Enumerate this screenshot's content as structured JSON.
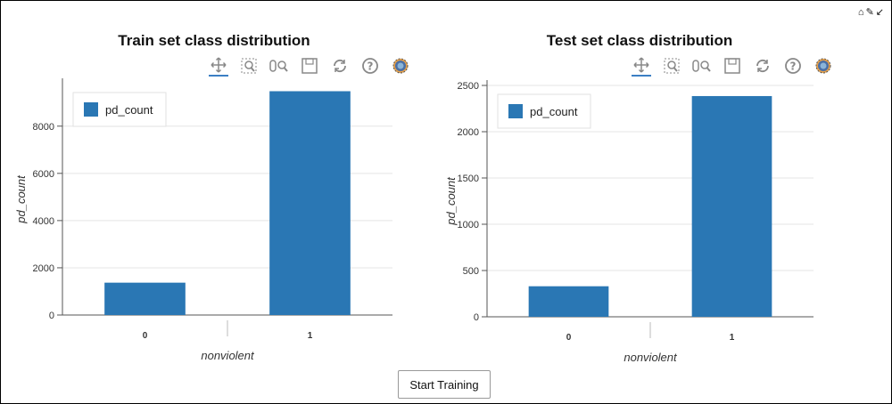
{
  "button": {
    "start_training": "Start Training"
  },
  "colors": {
    "bar": "#2a77b4",
    "axis": "#555555",
    "grid": "#e5e5e5"
  },
  "toolbar_icons": [
    "pan-icon",
    "box-zoom-icon",
    "wheel-zoom-icon",
    "save-icon",
    "reset-icon",
    "help-icon",
    "bokeh-logo-icon"
  ],
  "chart_data": [
    {
      "type": "bar",
      "title": "Train set class distribution",
      "categories": [
        "0",
        "1"
      ],
      "series": [
        {
          "name": "pd_count",
          "values": [
            1370,
            9480
          ]
        }
      ],
      "xlabel": "nonviolent",
      "ylabel": "pd_count",
      "yticks": [
        0,
        2000,
        4000,
        6000,
        8000
      ],
      "ylim": [
        0,
        9800
      ],
      "grid": true,
      "legend": "top-left"
    },
    {
      "type": "bar",
      "title": "Test set class distribution",
      "categories": [
        "0",
        "1"
      ],
      "series": [
        {
          "name": "pd_count",
          "values": [
            330,
            2385
          ]
        }
      ],
      "xlabel": "nonviolent",
      "ylabel": "pd_count",
      "yticks": [
        0,
        500,
        1000,
        1500,
        2000,
        2500
      ],
      "ylim": [
        0,
        2500
      ],
      "grid": true,
      "legend": "top-left"
    }
  ]
}
